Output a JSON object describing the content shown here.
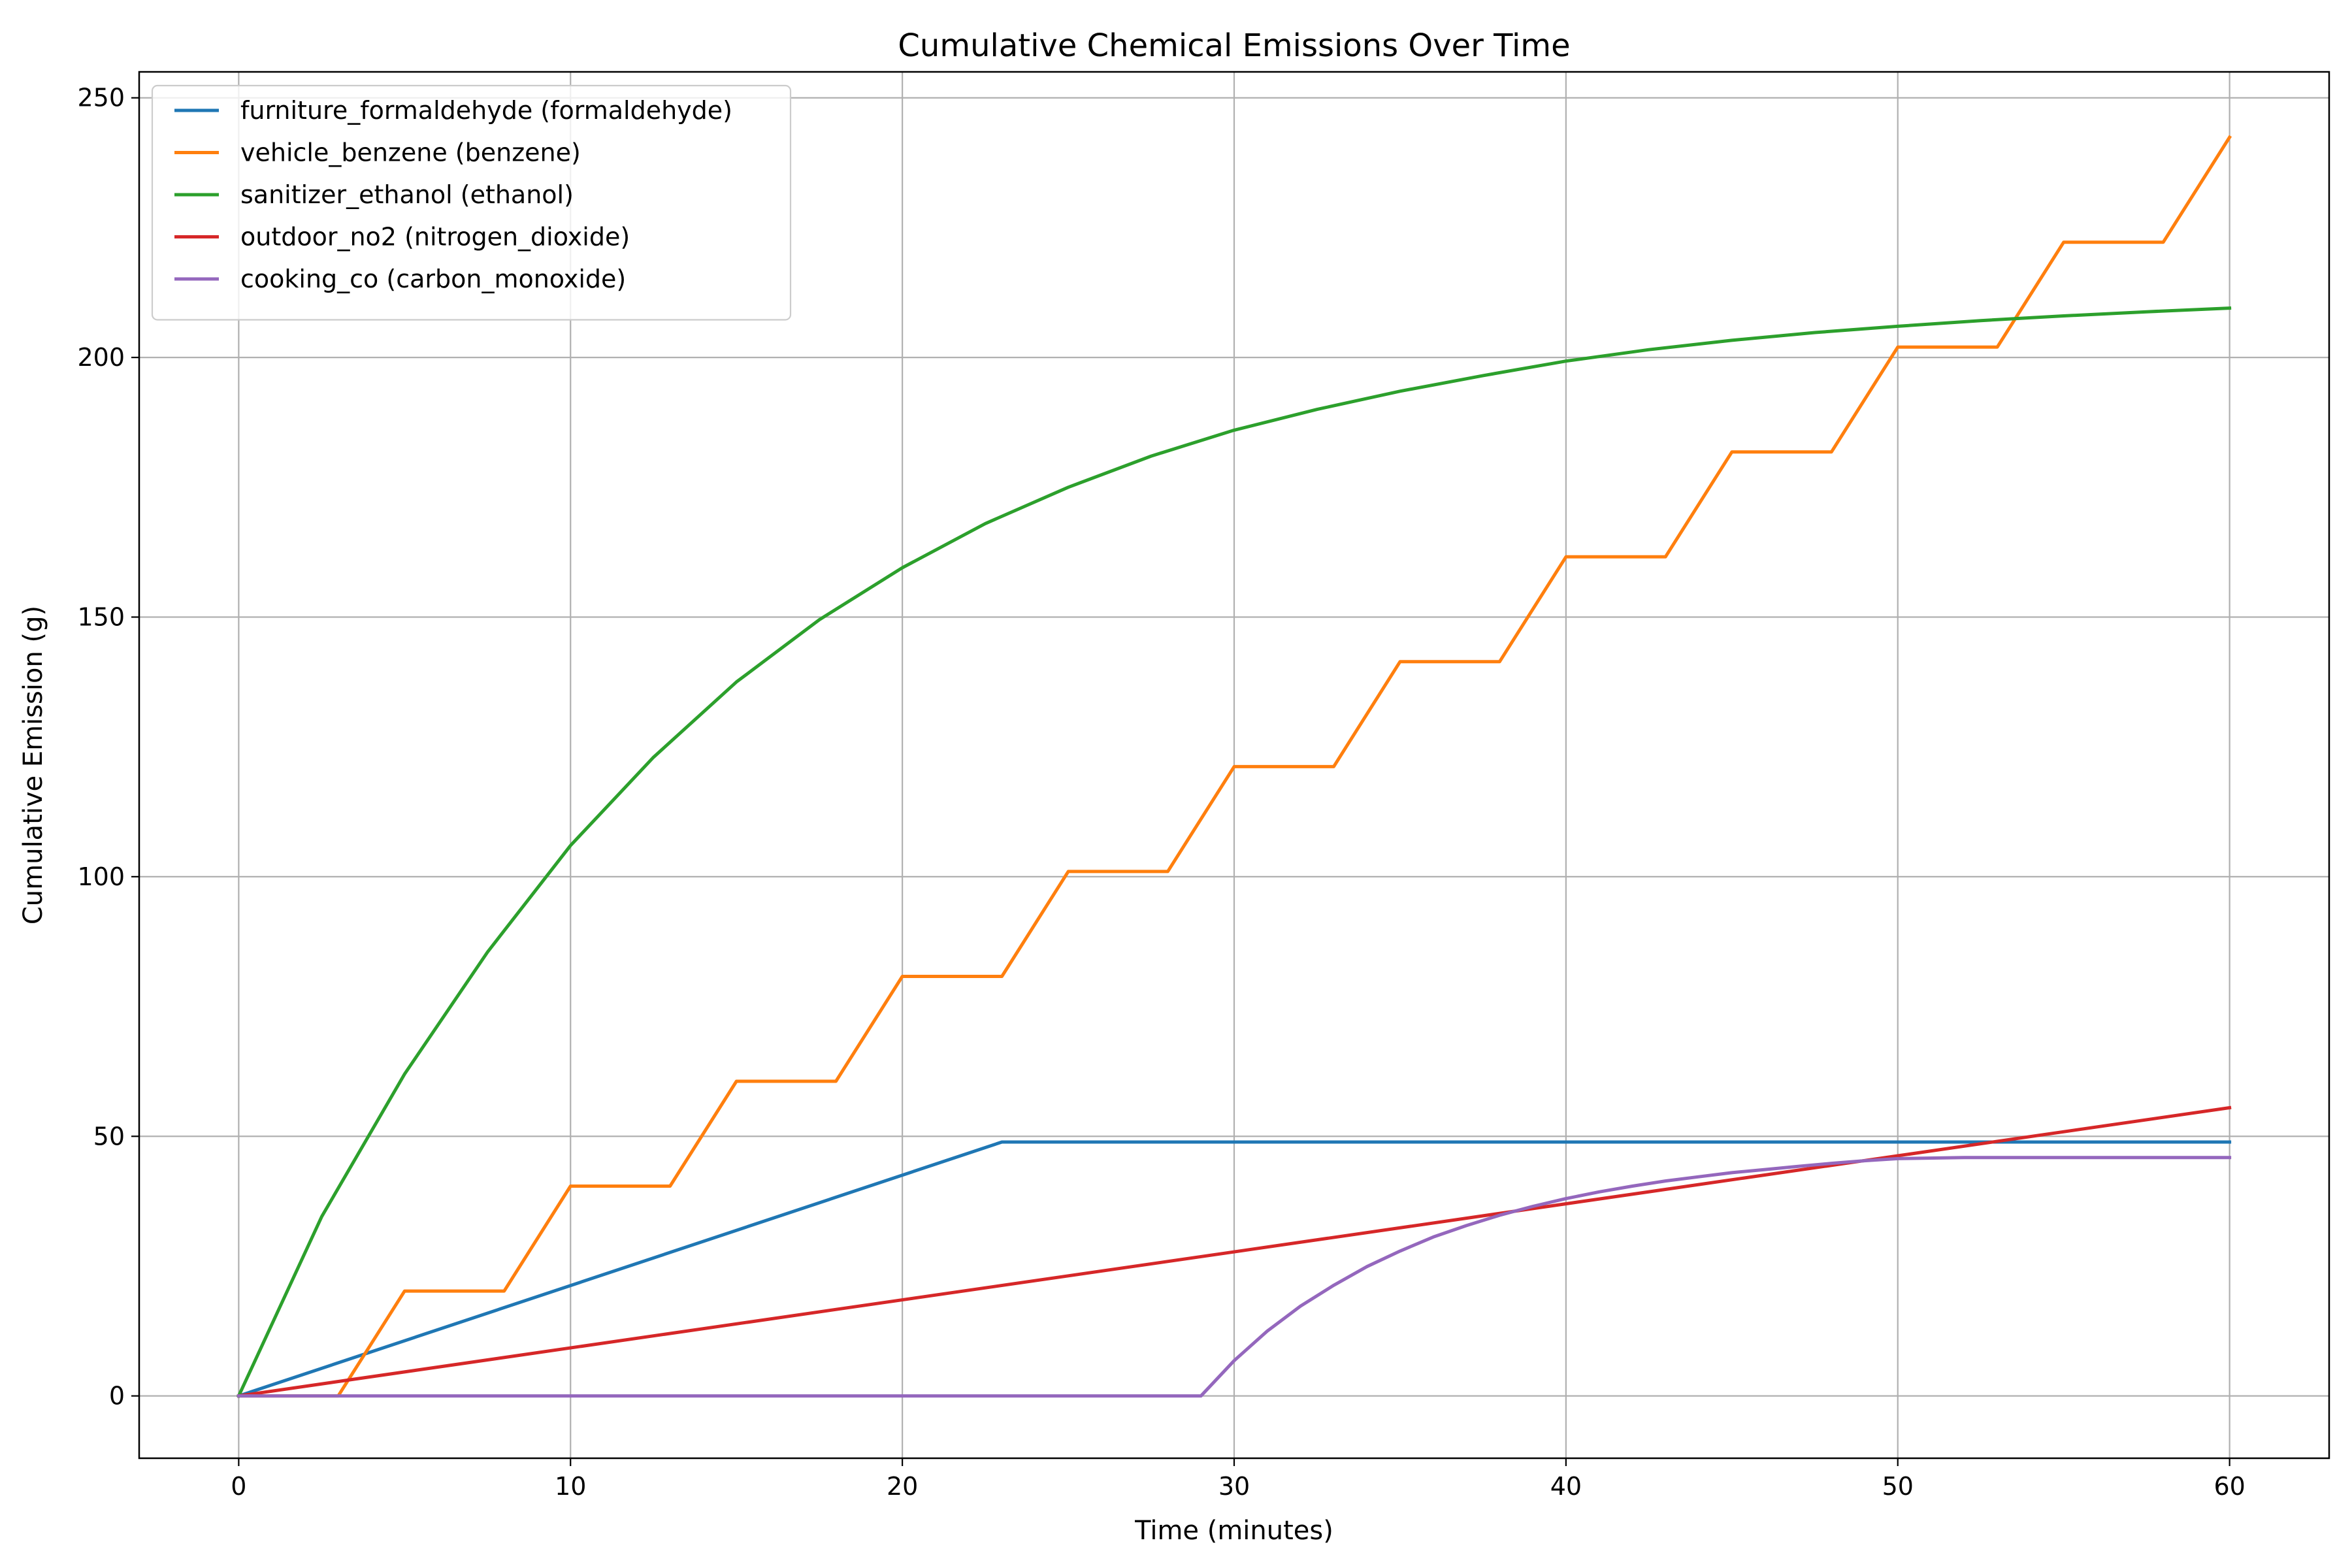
{
  "chart_data": {
    "type": "line",
    "title": "Cumulative Chemical Emissions Over Time",
    "xlabel": "Time (minutes)",
    "ylabel": "Cumulative Emission (g)",
    "xlim": [
      -3,
      63
    ],
    "ylim": [
      -12,
      255
    ],
    "xticks": [
      0,
      10,
      20,
      30,
      40,
      50,
      60
    ],
    "yticks": [
      0,
      50,
      100,
      150,
      200,
      250
    ],
    "grid": true,
    "legend_position": "top-left",
    "series": [
      {
        "name": "furniture_formaldehyde (formaldehyde)",
        "color": "#1f77b4",
        "points": [
          [
            0,
            0
          ],
          [
            23,
            48.9
          ],
          [
            60,
            48.9
          ]
        ]
      },
      {
        "name": "vehicle_benzene (benzene)",
        "color": "#ff7f0e",
        "points": [
          [
            0,
            0
          ],
          [
            3,
            0
          ],
          [
            5,
            20.2
          ],
          [
            8,
            20.2
          ],
          [
            10,
            40.4
          ],
          [
            13,
            40.4
          ],
          [
            15,
            60.6
          ],
          [
            18,
            60.6
          ],
          [
            20,
            80.8
          ],
          [
            23,
            80.8
          ],
          [
            25,
            101.0
          ],
          [
            28,
            101.0
          ],
          [
            30,
            121.2
          ],
          [
            33,
            121.2
          ],
          [
            35,
            141.4
          ],
          [
            38,
            141.4
          ],
          [
            40,
            161.6
          ],
          [
            43,
            161.6
          ],
          [
            45,
            181.8
          ],
          [
            48,
            181.8
          ],
          [
            50,
            202.0
          ],
          [
            53,
            202.0
          ],
          [
            55,
            222.2
          ],
          [
            58,
            222.2
          ],
          [
            60,
            242.4
          ]
        ]
      },
      {
        "name": "sanitizer_ethanol (ethanol)",
        "color": "#2ca02c",
        "points": [
          [
            0,
            0
          ],
          [
            2.5,
            34.5
          ],
          [
            5,
            62.0
          ],
          [
            7.5,
            85.5
          ],
          [
            10,
            106.0
          ],
          [
            12.5,
            123.0
          ],
          [
            15,
            137.5
          ],
          [
            17.5,
            149.5
          ],
          [
            20,
            159.5
          ],
          [
            22.5,
            168.0
          ],
          [
            25,
            175.0
          ],
          [
            27.5,
            181.0
          ],
          [
            30,
            186.0
          ],
          [
            32.5,
            190.0
          ],
          [
            35,
            193.5
          ],
          [
            37.5,
            196.5
          ],
          [
            40,
            199.3
          ],
          [
            42.5,
            201.5
          ],
          [
            45,
            203.3
          ],
          [
            47.5,
            204.8
          ],
          [
            50,
            206.0
          ],
          [
            52.5,
            207.1
          ],
          [
            55,
            208.0
          ],
          [
            57.5,
            208.8
          ],
          [
            60,
            209.5
          ]
        ]
      },
      {
        "name": "outdoor_no2 (nitrogen_dioxide)",
        "color": "#d62728",
        "points": [
          [
            0,
            0
          ],
          [
            60,
            55.5
          ]
        ]
      },
      {
        "name": "cooking_co (carbon_monoxide)",
        "color": "#9467bd",
        "points": [
          [
            0,
            0
          ],
          [
            29,
            0
          ],
          [
            30,
            6.8
          ],
          [
            31,
            12.5
          ],
          [
            32,
            17.3
          ],
          [
            33,
            21.3
          ],
          [
            34,
            24.9
          ],
          [
            35,
            27.9
          ],
          [
            36,
            30.6
          ],
          [
            37,
            32.8
          ],
          [
            38,
            34.8
          ],
          [
            39,
            36.5
          ],
          [
            40,
            38.0
          ],
          [
            41,
            39.3
          ],
          [
            42,
            40.4
          ],
          [
            43,
            41.4
          ],
          [
            44,
            42.2
          ],
          [
            45,
            43.0
          ],
          [
            46,
            43.6
          ],
          [
            47,
            44.2
          ],
          [
            48,
            44.8
          ],
          [
            49,
            45.3
          ],
          [
            50,
            45.7
          ],
          [
            52,
            45.9
          ],
          [
            60,
            45.9
          ]
        ]
      }
    ]
  }
}
